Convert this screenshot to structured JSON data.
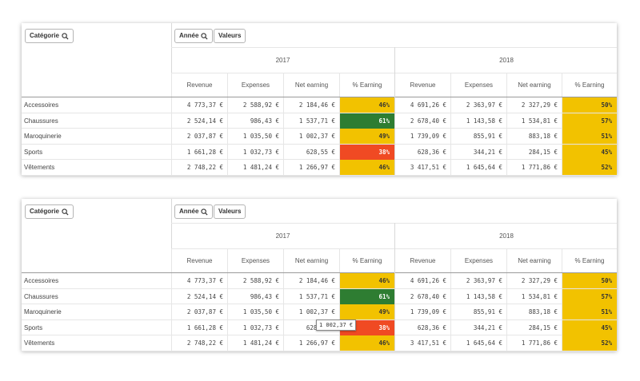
{
  "filters": {
    "category_label": "Catégorie",
    "year_label": "Année",
    "values_label": "Valeurs"
  },
  "years": [
    "2017",
    "2018"
  ],
  "columns": [
    "Revenue",
    "Expenses",
    "Net earning",
    "% Earning"
  ],
  "rows": [
    {
      "label": "Accessoires",
      "y2017": [
        "4 773,37 €",
        "2 588,92 €",
        "2 184,46 €",
        "46%"
      ],
      "y2018": [
        "4 691,26 €",
        "2 363,97 €",
        "2 327,29 €",
        "50%"
      ]
    },
    {
      "label": "Chaussures",
      "y2017": [
        "2 524,14 €",
        "986,43 €",
        "1 537,71 €",
        "61%"
      ],
      "y2018": [
        "2 678,40 €",
        "1 143,58 €",
        "1 534,81 €",
        "57%"
      ]
    },
    {
      "label": "Maroquinerie",
      "y2017": [
        "2 037,87 €",
        "1 035,50 €",
        "1 002,37 €",
        "49%"
      ],
      "y2018": [
        "1 739,09 €",
        "855,91 €",
        "883,18 €",
        "51%"
      ]
    },
    {
      "label": "Sports",
      "y2017": [
        "1 661,28 €",
        "1 032,73 €",
        "628,55 €",
        "38%"
      ],
      "y2018": [
        "628,36 €",
        "344,21 €",
        "284,15 €",
        "45%"
      ]
    },
    {
      "label": "Vêtements",
      "y2017": [
        "2 748,22 €",
        "1 481,24 €",
        "1 266,97 €",
        "46%"
      ],
      "y2018": [
        "3 417,51 €",
        "1 645,64 €",
        "1 771,86 €",
        "52%"
      ]
    }
  ],
  "pct_colors": {
    "y2017": [
      "#f2c200",
      "#2e7d32",
      "#f2c200",
      "#f04a23",
      "#f2c200"
    ],
    "y2018": [
      "#f2c200",
      "#f2c200",
      "#f2c200",
      "#f2c200",
      "#f2c200"
    ]
  },
  "pct_text_colors": {
    "y2017": [
      "#333333",
      "#ffffff",
      "#333333",
      "#ffffff",
      "#333333"
    ],
    "y2018": [
      "#333333",
      "#333333",
      "#333333",
      "#333333",
      "#333333"
    ]
  },
  "tooltip": {
    "text": "1 002,37 €"
  }
}
